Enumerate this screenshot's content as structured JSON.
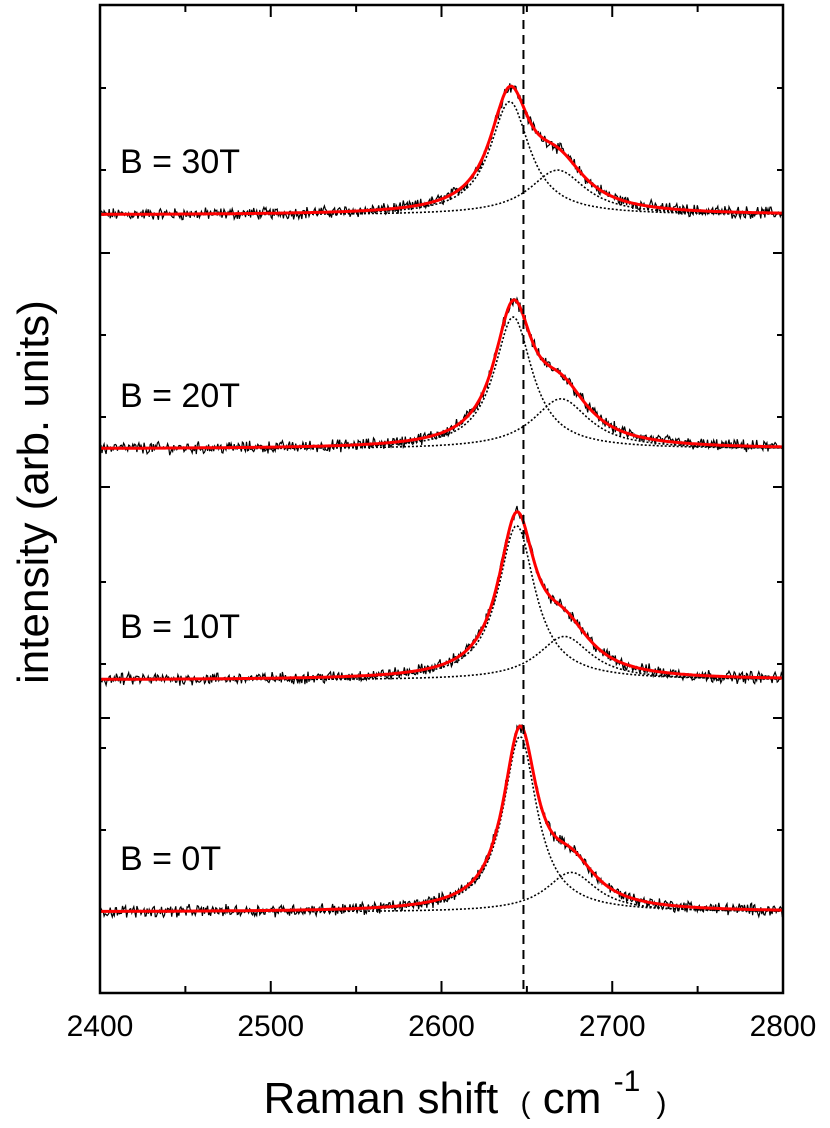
{
  "chart_data": {
    "type": "line",
    "title": "",
    "xlabel": "Raman shift",
    "xlabel_unit_open": "(",
    "xlabel_unit": "cm",
    "xlabel_unit_exp": "-1",
    "xlabel_unit_close": ")",
    "ylabel": "intensity (arb. units)",
    "xlim": [
      2400,
      2800
    ],
    "x_ticks": [
      "2400",
      "2500",
      "2600",
      "2700",
      "2800"
    ],
    "reference_line_x": 2648,
    "grid": false,
    "legend": "none",
    "panels": [
      {
        "label": "B = 30T",
        "field_T": 30,
        "peaks": [
          {
            "name": "main",
            "center": 2640,
            "hwhm": 14,
            "height": 0.86
          },
          {
            "name": "shoulder",
            "center": 2668,
            "hwhm": 20,
            "height": 0.34
          }
        ],
        "series": [
          {
            "name": "data",
            "color": "#000000"
          },
          {
            "name": "total fit",
            "color": "#ff0000"
          },
          {
            "name": "component fits",
            "color": "#000000",
            "style": "dotted"
          }
        ]
      },
      {
        "label": "B = 20T",
        "field_T": 20,
        "peaks": [
          {
            "name": "main",
            "center": 2642,
            "hwhm": 13.5,
            "height": 1.0
          },
          {
            "name": "shoulder",
            "center": 2670,
            "hwhm": 20,
            "height": 0.38
          }
        ],
        "series": [
          {
            "name": "data",
            "color": "#000000"
          },
          {
            "name": "total fit",
            "color": "#ff0000"
          },
          {
            "name": "component fits",
            "color": "#000000",
            "style": "dotted"
          }
        ]
      },
      {
        "label": "B = 10T",
        "field_T": 10,
        "peaks": [
          {
            "name": "main",
            "center": 2644,
            "hwhm": 13,
            "height": 1.17
          },
          {
            "name": "shoulder",
            "center": 2672,
            "hwhm": 19,
            "height": 0.33
          }
        ],
        "series": [
          {
            "name": "data",
            "color": "#000000"
          },
          {
            "name": "total fit",
            "color": "#ff0000"
          },
          {
            "name": "component fits",
            "color": "#000000",
            "style": "dotted"
          }
        ]
      },
      {
        "label": "B = 0T",
        "field_T": 0,
        "peaks": [
          {
            "name": "main",
            "center": 2646,
            "hwhm": 12,
            "height": 1.33
          },
          {
            "name": "shoulder",
            "center": 2676,
            "hwhm": 18,
            "height": 0.3
          }
        ],
        "series": [
          {
            "name": "data",
            "color": "#000000"
          },
          {
            "name": "total fit",
            "color": "#ff0000"
          },
          {
            "name": "component fits",
            "color": "#000000",
            "style": "dotted"
          }
        ]
      }
    ]
  }
}
